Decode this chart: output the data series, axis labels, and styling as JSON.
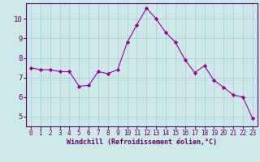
{
  "x": [
    0,
    1,
    2,
    3,
    4,
    5,
    6,
    7,
    8,
    9,
    10,
    11,
    12,
    13,
    14,
    15,
    16,
    17,
    18,
    19,
    20,
    21,
    22,
    23
  ],
  "y": [
    7.5,
    7.4,
    7.4,
    7.3,
    7.3,
    6.55,
    6.6,
    7.3,
    7.2,
    7.4,
    8.8,
    9.7,
    10.55,
    10.0,
    9.3,
    8.8,
    7.9,
    7.25,
    7.6,
    6.85,
    6.5,
    6.1,
    6.0,
    4.9
  ],
  "line_color": "#990099",
  "marker": "D",
  "marker_size": 2.2,
  "background_color": "#cce8e8",
  "grid_color": "#aacece",
  "xlabel": "Windchill (Refroidissement éolien,°C)",
  "xlabel_color": "#660066",
  "tick_color": "#660066",
  "axis_color": "#660066",
  "xlim": [
    -0.5,
    23.5
  ],
  "ylim": [
    4.5,
    10.8
  ],
  "yticks": [
    5,
    6,
    7,
    8,
    9,
    10
  ],
  "xticks": [
    0,
    1,
    2,
    3,
    4,
    5,
    6,
    7,
    8,
    9,
    10,
    11,
    12,
    13,
    14,
    15,
    16,
    17,
    18,
    19,
    20,
    21,
    22,
    23
  ],
  "tick_fontsize": 5.5,
  "xlabel_fontsize": 6.0,
  "ytick_fontsize": 6.5
}
